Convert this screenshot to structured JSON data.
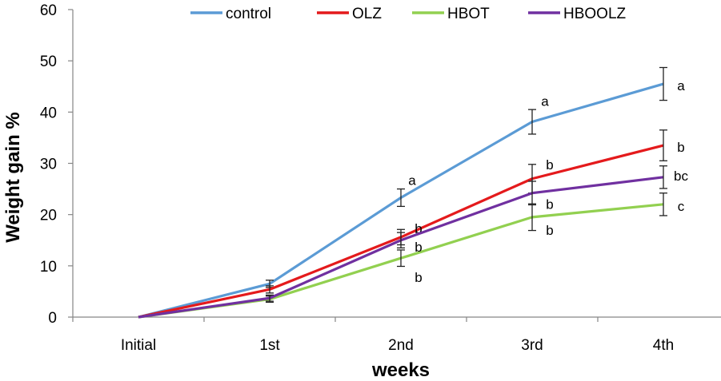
{
  "chart_data": {
    "type": "line",
    "title": "",
    "xlabel": "weeks",
    "ylabel": "Weight gain %",
    "categories": [
      "Initial",
      "1st",
      "2nd",
      "3rd",
      "4th"
    ],
    "ylim": [
      0,
      60
    ],
    "yticks": [
      0,
      10,
      20,
      30,
      40,
      50,
      60
    ],
    "grid": false,
    "legend_position": "top",
    "series": [
      {
        "name": "control",
        "color": "#5b9bd5",
        "values": [
          0,
          6.5,
          23.3,
          38.1,
          45.5
        ],
        "errors": [
          0,
          0.7,
          1.7,
          2.4,
          3.2
        ],
        "labels": [
          "",
          "",
          "a",
          "a",
          "a"
        ]
      },
      {
        "name": "OLZ",
        "color": "#e41a1c",
        "values": [
          0,
          5.4,
          15.6,
          27.0,
          33.5
        ],
        "errors": [
          0,
          0.7,
          1.5,
          2.8,
          3.0
        ],
        "labels": [
          "",
          "",
          "b",
          "b",
          "b"
        ]
      },
      {
        "name": "HBOT",
        "color": "#92d050",
        "values": [
          0,
          3.5,
          11.5,
          19.5,
          22.0
        ],
        "errors": [
          0,
          0.6,
          1.6,
          2.6,
          2.2
        ],
        "labels": [
          "",
          "",
          "b",
          "b",
          "c"
        ]
      },
      {
        "name": "HBOOLZ",
        "color": "#7030a0",
        "values": [
          0,
          3.7,
          15.0,
          24.2,
          27.3
        ],
        "errors": [
          0,
          0.6,
          1.5,
          2.3,
          2.2
        ],
        "labels": [
          "",
          "",
          "b",
          "b",
          "bc"
        ]
      }
    ]
  }
}
